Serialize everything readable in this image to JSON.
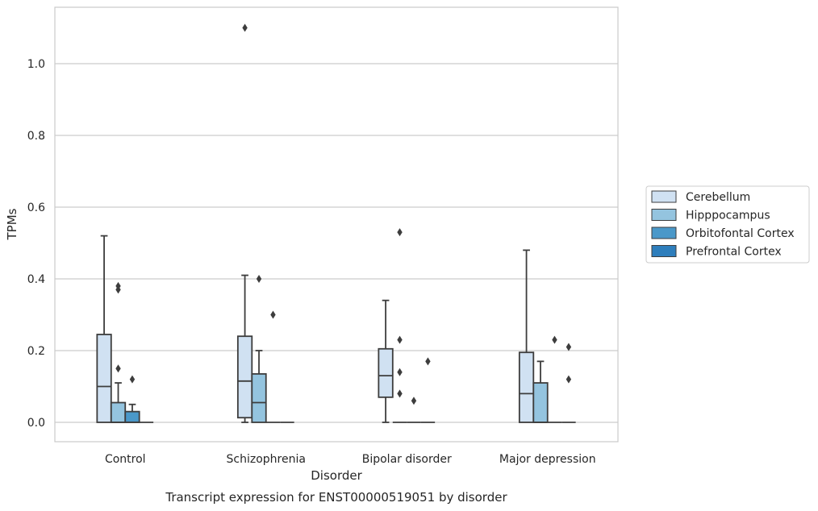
{
  "chart_data": {
    "type": "box",
    "title": "",
    "caption": "Transcript expression for ENST00000519051 by disorder",
    "xlabel": "Disorder",
    "ylabel": "TPMs",
    "ylim": [
      -0.05,
      1.16
    ],
    "yticks": [
      "0.0",
      "0.2",
      "0.4",
      "0.6",
      "0.8",
      "1.0"
    ],
    "grid": true,
    "legend_placement": "right",
    "categories": [
      "Control",
      "Schizophrenia",
      "Bipolar disorder",
      "Major depression"
    ],
    "series": [
      {
        "name": "Cerebellum",
        "color": "#d0e1f2",
        "boxes": [
          {
            "q1": 0.0,
            "median": 0.1,
            "q3": 0.245,
            "whisker_low": 0.0,
            "whisker_high": 0.52,
            "outliers": []
          },
          {
            "q1": 0.013,
            "median": 0.115,
            "q3": 0.24,
            "whisker_low": 0.0,
            "whisker_high": 0.41,
            "outliers": [
              1.1
            ]
          },
          {
            "q1": 0.07,
            "median": 0.13,
            "q3": 0.205,
            "whisker_low": 0.0,
            "whisker_high": 0.34,
            "outliers": []
          },
          {
            "q1": 0.0,
            "median": 0.08,
            "q3": 0.195,
            "whisker_low": 0.0,
            "whisker_high": 0.48,
            "outliers": []
          }
        ]
      },
      {
        "name": "Hipppocampus",
        "color": "#94c4df",
        "boxes": [
          {
            "q1": 0.0,
            "median": 0.0,
            "q3": 0.055,
            "whisker_low": 0.0,
            "whisker_high": 0.11,
            "outliers": [
              0.15,
              0.37,
              0.38
            ]
          },
          {
            "q1": 0.0,
            "median": 0.055,
            "q3": 0.135,
            "whisker_low": 0.0,
            "whisker_high": 0.2,
            "outliers": [
              0.4
            ]
          },
          {
            "q1": 0.0,
            "median": 0.0,
            "q3": 0.0,
            "whisker_low": 0.0,
            "whisker_high": 0.0,
            "outliers": [
              0.08,
              0.14,
              0.23,
              0.53
            ]
          },
          {
            "q1": 0.0,
            "median": 0.0,
            "q3": 0.11,
            "whisker_low": 0.0,
            "whisker_high": 0.17,
            "outliers": []
          }
        ]
      },
      {
        "name": "Orbitofontal Cortex",
        "color": "#4a98c9",
        "boxes": [
          {
            "q1": 0.0,
            "median": 0.0,
            "q3": 0.03,
            "whisker_low": 0.0,
            "whisker_high": 0.05,
            "outliers": [
              0.12
            ]
          },
          {
            "q1": 0.0,
            "median": 0.0,
            "q3": 0.0,
            "whisker_low": 0.0,
            "whisker_high": 0.0,
            "outliers": [
              0.3
            ]
          },
          {
            "q1": 0.0,
            "median": 0.0,
            "q3": 0.0,
            "whisker_low": 0.0,
            "whisker_high": 0.0,
            "outliers": [
              0.06
            ]
          },
          {
            "q1": 0.0,
            "median": 0.0,
            "q3": 0.0,
            "whisker_low": 0.0,
            "whisker_high": 0.0,
            "outliers": [
              0.23
            ]
          }
        ]
      },
      {
        "name": "Prefrontal Cortex",
        "color": "#2e7ebc",
        "boxes": [
          {
            "q1": 0.0,
            "median": 0.0,
            "q3": 0.0,
            "whisker_low": 0.0,
            "whisker_high": 0.0,
            "outliers": []
          },
          {
            "q1": 0.0,
            "median": 0.0,
            "q3": 0.0,
            "whisker_low": 0.0,
            "whisker_high": 0.0,
            "outliers": []
          },
          {
            "q1": 0.0,
            "median": 0.0,
            "q3": 0.0,
            "whisker_low": 0.0,
            "whisker_high": 0.0,
            "outliers": [
              0.17
            ]
          },
          {
            "q1": 0.0,
            "median": 0.0,
            "q3": 0.0,
            "whisker_low": 0.0,
            "whisker_high": 0.0,
            "outliers": [
              0.12,
              0.21
            ]
          }
        ]
      }
    ]
  }
}
